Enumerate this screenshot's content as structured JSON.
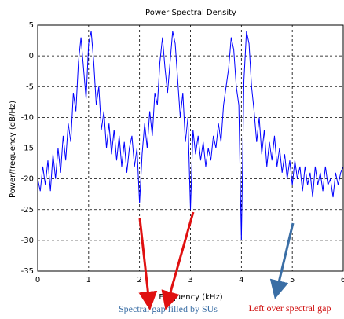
{
  "chart_data": {
    "type": "line",
    "title": "Power Spectral Density",
    "x_label": "Frequency (kHz)",
    "y_label": "Power/frequency (dB/Hz)",
    "x": [
      0,
      0.05,
      0.1,
      0.15,
      0.2,
      0.25,
      0.3,
      0.35,
      0.4,
      0.45,
      0.5,
      0.55,
      0.6,
      0.65,
      0.7,
      0.75,
      0.8,
      0.85,
      0.9,
      0.95,
      1,
      1.05,
      1.1,
      1.15,
      1.2,
      1.25,
      1.3,
      1.35,
      1.4,
      1.45,
      1.5,
      1.55,
      1.6,
      1.65,
      1.7,
      1.75,
      1.8,
      1.85,
      1.9,
      1.95,
      2,
      2.05,
      2.1,
      2.15,
      2.2,
      2.25,
      2.3,
      2.35,
      2.4,
      2.45,
      2.5,
      2.55,
      2.6,
      2.65,
      2.7,
      2.75,
      2.8,
      2.85,
      2.9,
      2.95,
      3,
      3.05,
      3.1,
      3.15,
      3.2,
      3.25,
      3.3,
      3.35,
      3.4,
      3.45,
      3.5,
      3.55,
      3.6,
      3.65,
      3.7,
      3.75,
      3.8,
      3.85,
      3.9,
      3.95,
      4,
      4.05,
      4.1,
      4.15,
      4.2,
      4.25,
      4.3,
      4.35,
      4.4,
      4.45,
      4.5,
      4.55,
      4.6,
      4.65,
      4.7,
      4.75,
      4.8,
      4.85,
      4.9,
      4.95,
      5,
      5.05,
      5.1,
      5.15,
      5.2,
      5.25,
      5.3,
      5.35,
      5.4,
      5.45,
      5.5,
      5.55,
      5.6,
      5.65,
      5.7,
      5.75,
      5.8,
      5.85,
      5.9,
      5.95,
      6
    ],
    "series": [
      {
        "color": "#0000ff",
        "values": [
          -20,
          -22,
          -18,
          -21,
          -17,
          -22,
          -16,
          -20,
          -15,
          -19,
          -13,
          -17,
          -11,
          -14,
          -6,
          -9,
          -1,
          3,
          -2,
          -7,
          2,
          4,
          -1,
          -8,
          -5,
          -12,
          -9,
          -15,
          -11,
          -16,
          -12,
          -17,
          -13,
          -18,
          -14,
          -19,
          -15,
          -13,
          -18,
          -15,
          -24,
          -16,
          -11,
          -15,
          -9,
          -13,
          -6,
          -8,
          -1,
          3,
          -2,
          -6,
          -1,
          4,
          2,
          -4,
          -10,
          -6,
          -14,
          -10,
          -25,
          -12,
          -16,
          -13,
          -17,
          -14,
          -18,
          -15,
          -17,
          -13,
          -15,
          -11,
          -14,
          -8,
          -5,
          -2,
          3,
          1,
          -5,
          -8,
          -30,
          -4,
          4,
          2,
          -5,
          -9,
          -14,
          -10,
          -16,
          -12,
          -18,
          -14,
          -17,
          -13,
          -18,
          -15,
          -19,
          -16,
          -20,
          -17,
          -21,
          -17,
          -20,
          -18,
          -22,
          -18,
          -21,
          -19,
          -23,
          -18,
          -21,
          -19,
          -22,
          -18,
          -21,
          -20,
          -23,
          -19,
          -21,
          -19,
          -18
        ]
      }
    ],
    "xlim": [
      0,
      6
    ],
    "ylim": [
      -35,
      5
    ],
    "xticks": [
      0,
      1,
      2,
      3,
      4,
      5,
      6
    ],
    "yticks": [
      -35,
      -30,
      -25,
      -20,
      -15,
      -10,
      -5,
      0,
      5
    ],
    "grid": true,
    "annotations": [
      "Spectral gap filled by SUs",
      "Left over spectral gap"
    ]
  }
}
